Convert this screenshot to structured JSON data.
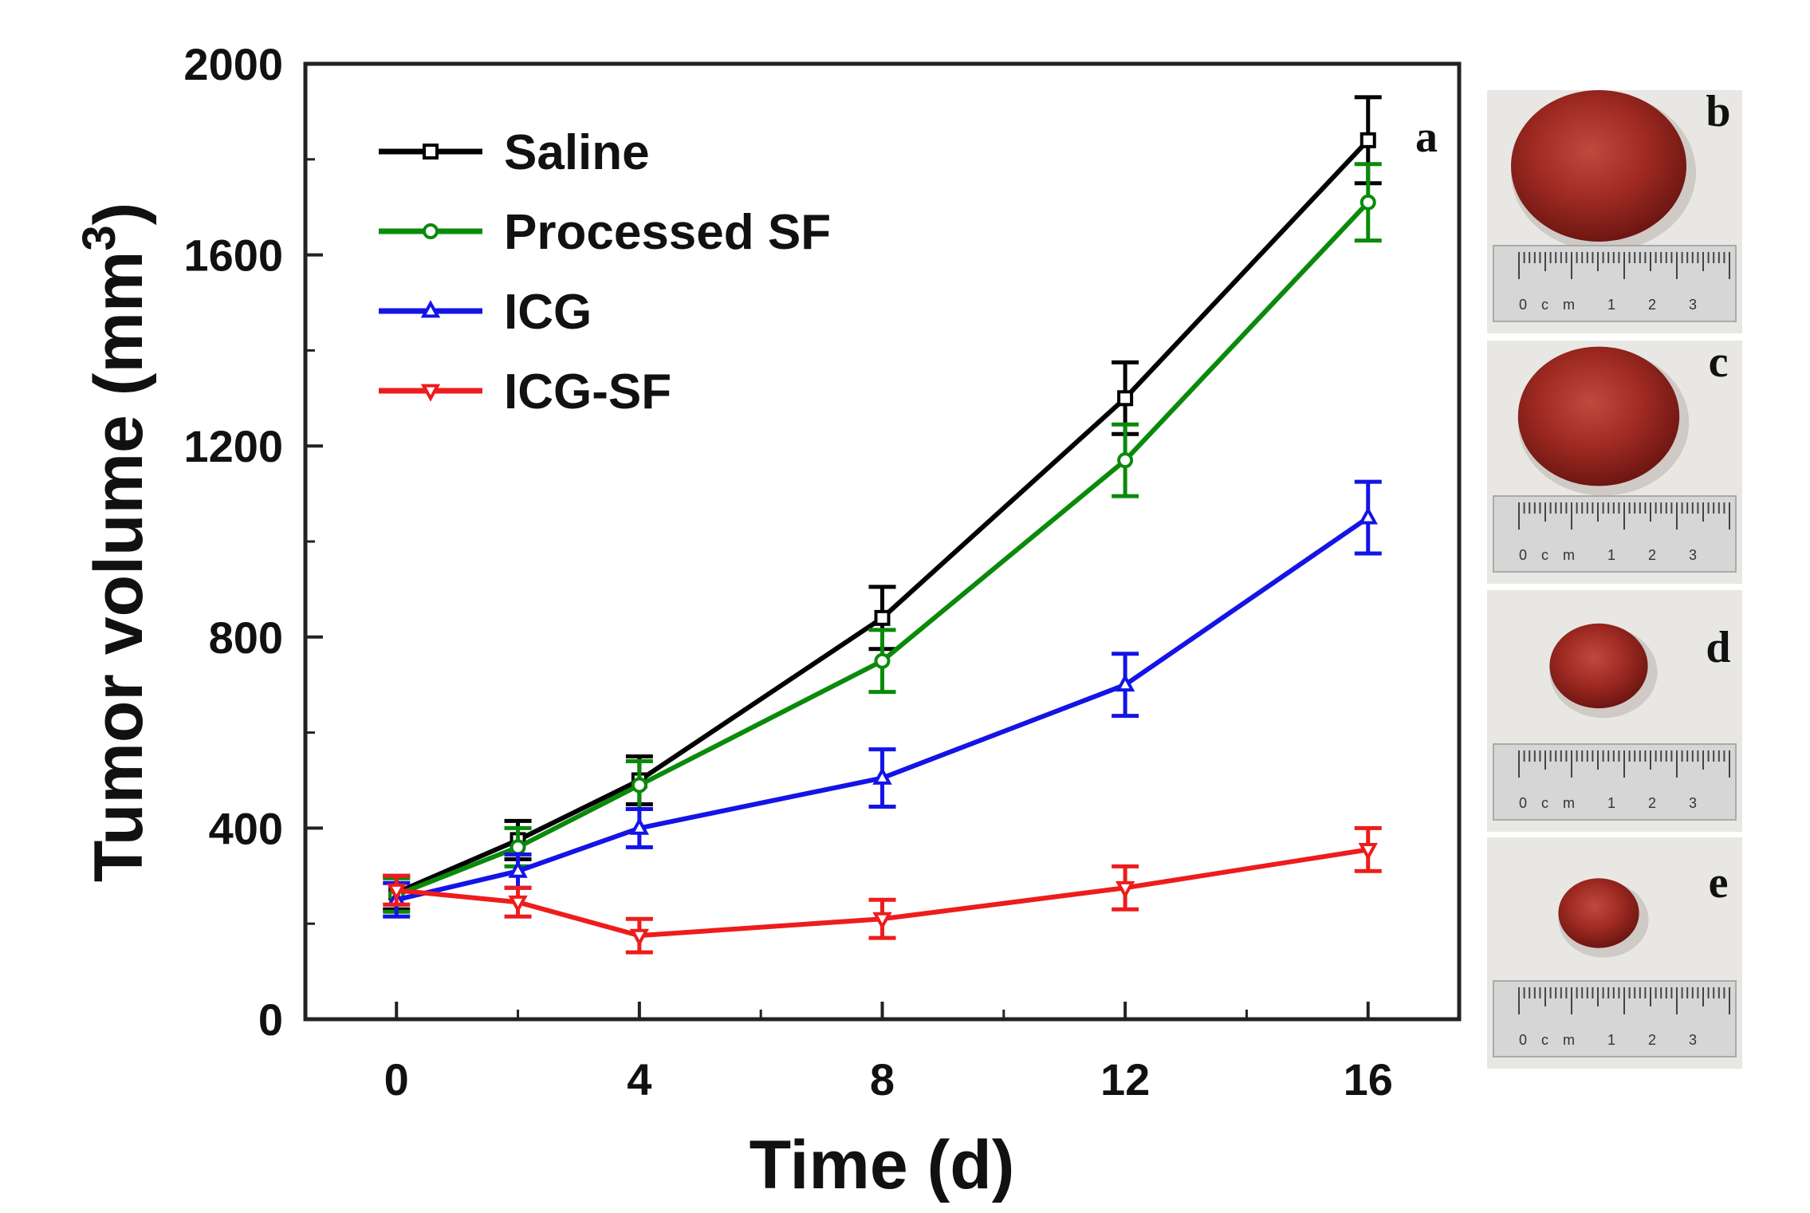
{
  "chart_data": {
    "type": "line",
    "title": "",
    "xlabel": "Time (d)",
    "ylabel": "Tumor volume (mm",
    "ylabel_sup": "3",
    "ylabel_close": ")",
    "xlim": [
      -1.5,
      17.5
    ],
    "ylim": [
      0,
      2000
    ],
    "x_ticks": [
      0,
      4,
      8,
      12,
      16
    ],
    "x_tick_labels": [
      "0",
      "4",
      "8",
      "12",
      "16"
    ],
    "x_minor_ticks": [
      2,
      6,
      10,
      14
    ],
    "y_ticks": [
      0,
      400,
      800,
      1200,
      1600,
      2000
    ],
    "y_tick_labels": [
      "0",
      "400",
      "800",
      "1200",
      "1600",
      "2000"
    ],
    "legend_position": "top-left",
    "x": [
      0,
      2,
      4,
      8,
      12,
      16
    ],
    "series": [
      {
        "name": "Saline",
        "color": "#000000",
        "marker": "square",
        "values": [
          265,
          375,
          500,
          840,
          1300,
          1840
        ],
        "errors": [
          35,
          40,
          50,
          65,
          75,
          90
        ]
      },
      {
        "name": "Processed SF",
        "color": "#0a8a0a",
        "marker": "circle",
        "values": [
          260,
          360,
          490,
          750,
          1170,
          1710
        ],
        "errors": [
          35,
          40,
          50,
          65,
          75,
          80
        ]
      },
      {
        "name": "ICG",
        "color": "#1414e6",
        "marker": "triangle-up",
        "values": [
          250,
          310,
          400,
          505,
          700,
          1050
        ],
        "errors": [
          35,
          35,
          40,
          60,
          65,
          75
        ]
      },
      {
        "name": "ICG-SF",
        "color": "#ee1c1c",
        "marker": "triangle-down",
        "values": [
          270,
          245,
          175,
          210,
          275,
          355
        ],
        "errors": [
          30,
          30,
          35,
          40,
          45,
          45
        ]
      }
    ],
    "panel_label": "a"
  },
  "photo_panels": [
    {
      "label": "b",
      "ruler_text": "0cm 1 2 3",
      "tumor_scale": 1.0
    },
    {
      "label": "c",
      "ruler_text": "0cm 1 2 3",
      "tumor_scale": 0.92
    },
    {
      "label": "d",
      "ruler_text": "0cm 1 2 3",
      "tumor_scale": 0.56
    },
    {
      "label": "e",
      "ruler_text": "0cm 1 2 3",
      "tumor_scale": 0.46
    }
  ],
  "colors": {
    "tumor": "#9e2a22",
    "tumor_dark": "#6e1612",
    "photo_bg": "#e9e7e4",
    "ruler": "#d6d6d6"
  }
}
